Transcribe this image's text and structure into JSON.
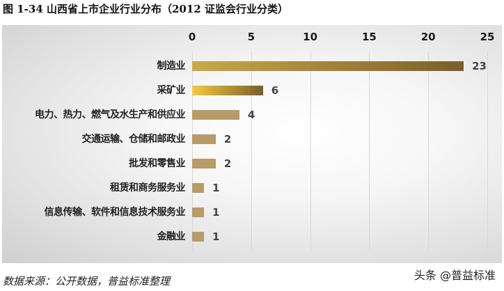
{
  "header": {
    "title": "图 1-34  山西省上市企业行业分布（2012  证监会行业分类）"
  },
  "footer": {
    "source": "数据来源：公开数据，普益标准整理",
    "watermark": "头条 @普益标准"
  },
  "chart_data": {
    "type": "bar",
    "orientation": "horizontal",
    "title": "图 1-34  山西省上市企业行业分布（2012  证监会行业分类）",
    "xlabel": "",
    "ylabel": "",
    "xlim": [
      0,
      25
    ],
    "ticks": [
      "0",
      "5",
      "10",
      "15",
      "20",
      "25"
    ],
    "tick_position": "top",
    "grid": true,
    "legend": null,
    "categories": [
      "制造业",
      "采矿业",
      "电力、热力、燃气及水生产和供应业",
      "交通运输、仓储和邮政业",
      "批发和零售业",
      "租赁和商务服务业",
      "信息传输、软件和信息技术服务业",
      "金融业"
    ],
    "values": [
      23,
      6,
      4,
      2,
      2,
      1,
      1,
      1
    ],
    "value_labels": [
      "23",
      "6",
      "4",
      "2",
      "2",
      "1",
      "1",
      "1"
    ],
    "colors": {
      "bar_default": "#b79b68",
      "bar_top_gradient": [
        "#c9a94a",
        "#7a5f2a"
      ],
      "bar_second_gradient": [
        "#f5c93c",
        "#7a5f2a"
      ],
      "grid": "#d9d9d9"
    }
  }
}
